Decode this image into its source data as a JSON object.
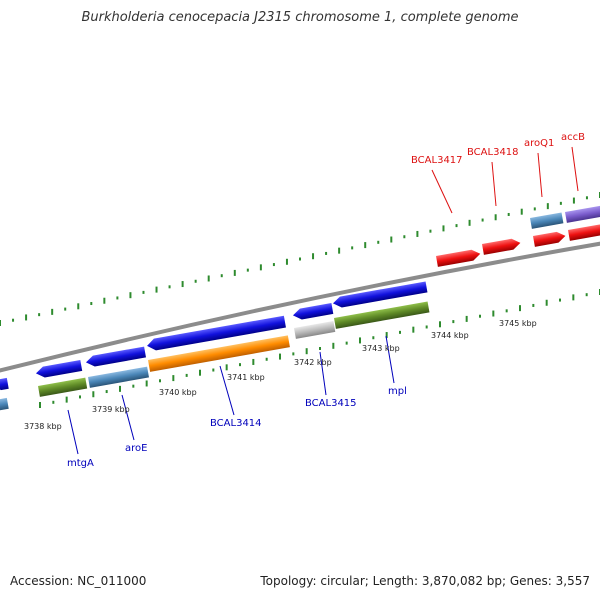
{
  "title": "Burkholderia cenocepacia J2315 chromosome 1, complete genome",
  "footer": {
    "accession": "Accession: NC_011000",
    "stats": "Topology: circular; Length: 3,870,082 bp; Genes: 3,557"
  },
  "colors": {
    "backbone": "#8c8c8c",
    "tick": "#2e8b2e",
    "forward_label": "#dd1111",
    "reverse_label": "#0000bb",
    "blue_gene": "#1111dd",
    "steel_gene": "#4a86b8",
    "olive_gene": "#5f8a27",
    "orange_gene": "#ff8c00",
    "gray_gene": "#bbbbbb",
    "red_gene": "#ee1111",
    "purple_gene": "#7a5ccc"
  },
  "kbp_labels": [
    "3738 kbp",
    "3739 kbp",
    "3740 kbp",
    "3741 kbp",
    "3742 kbp",
    "3743 kbp",
    "3744 kbp",
    "3745 kbp"
  ],
  "genes": [
    {
      "name": "BCAL3417",
      "strand": "forward",
      "color": "red"
    },
    {
      "name": "BCAL3418",
      "strand": "forward",
      "color": "red"
    },
    {
      "name": "aroQ1",
      "strand": "forward",
      "color": "red"
    },
    {
      "name": "accB",
      "strand": "forward",
      "color": "red"
    },
    {
      "name": "mtgA",
      "strand": "reverse",
      "color": "blue"
    },
    {
      "name": "aroE",
      "strand": "reverse",
      "color": "blue"
    },
    {
      "name": "BCAL3414",
      "strand": "reverse",
      "color": "blue"
    },
    {
      "name": "BCAL3415",
      "strand": "reverse",
      "color": "blue"
    },
    {
      "name": "mpl",
      "strand": "reverse",
      "color": "blue"
    }
  ]
}
